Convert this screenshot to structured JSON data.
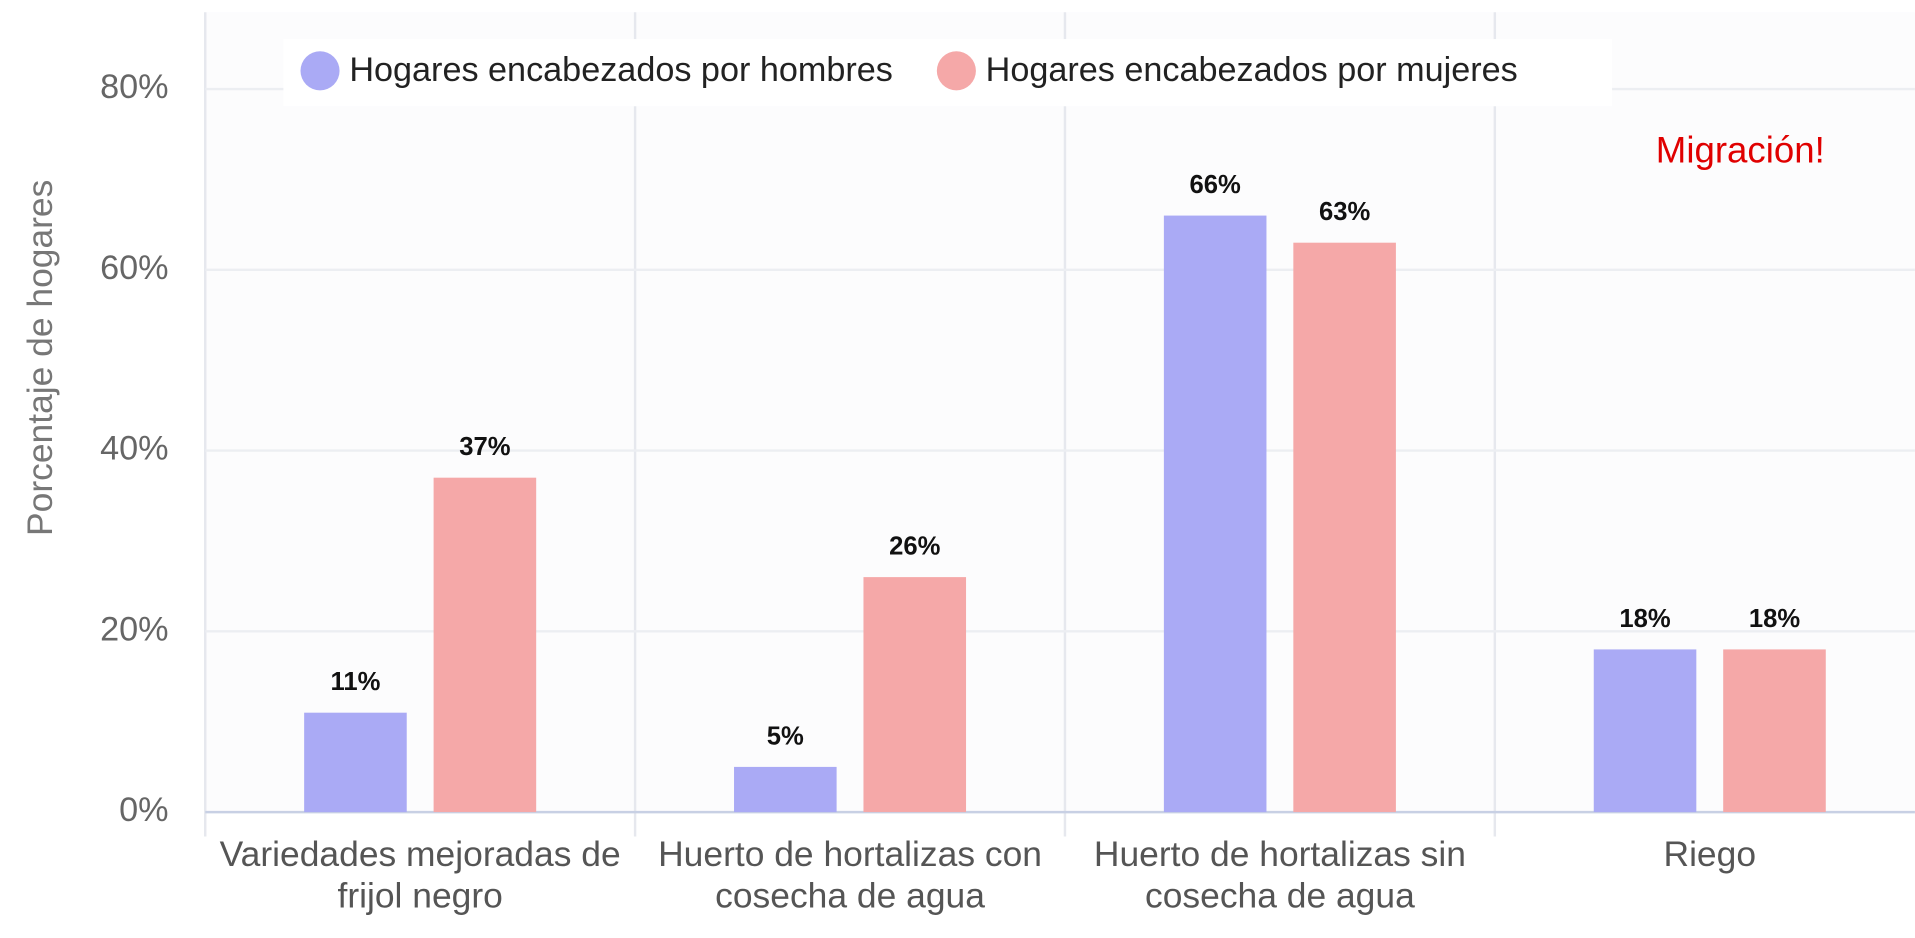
{
  "chart_data": {
    "type": "bar",
    "y_label": "Porcentaje de hogares",
    "annotation": "Migración!",
    "categories": [
      "Variedades mejoradas de frijol negro",
      "Huerto de hortalizas con cosecha de agua",
      "Huerto de hortalizas sin cosecha de agua",
      "Riego"
    ],
    "series": [
      {
        "name": "Hogares encabezados por hombres",
        "color": "#aaaaf5",
        "values": [
          11,
          5,
          66,
          18
        ],
        "value_labels": [
          "11%",
          "5%",
          "66%",
          "18%"
        ]
      },
      {
        "name": "Hogares encabezados por mujeres",
        "color": "#f5a8a8",
        "values": [
          37,
          26,
          63,
          18
        ],
        "value_labels": [
          "37%",
          "26%",
          "63%",
          "18%"
        ]
      }
    ],
    "ylim": [
      0,
      88.5
    ],
    "yticks": [
      {
        "value": 0,
        "label": "0%"
      },
      {
        "value": 20,
        "label": "20%"
      },
      {
        "value": 40,
        "label": "40%"
      },
      {
        "value": 60,
        "label": "60%"
      },
      {
        "value": 80,
        "label": "80%"
      }
    ],
    "grid": true,
    "legend": "top"
  }
}
